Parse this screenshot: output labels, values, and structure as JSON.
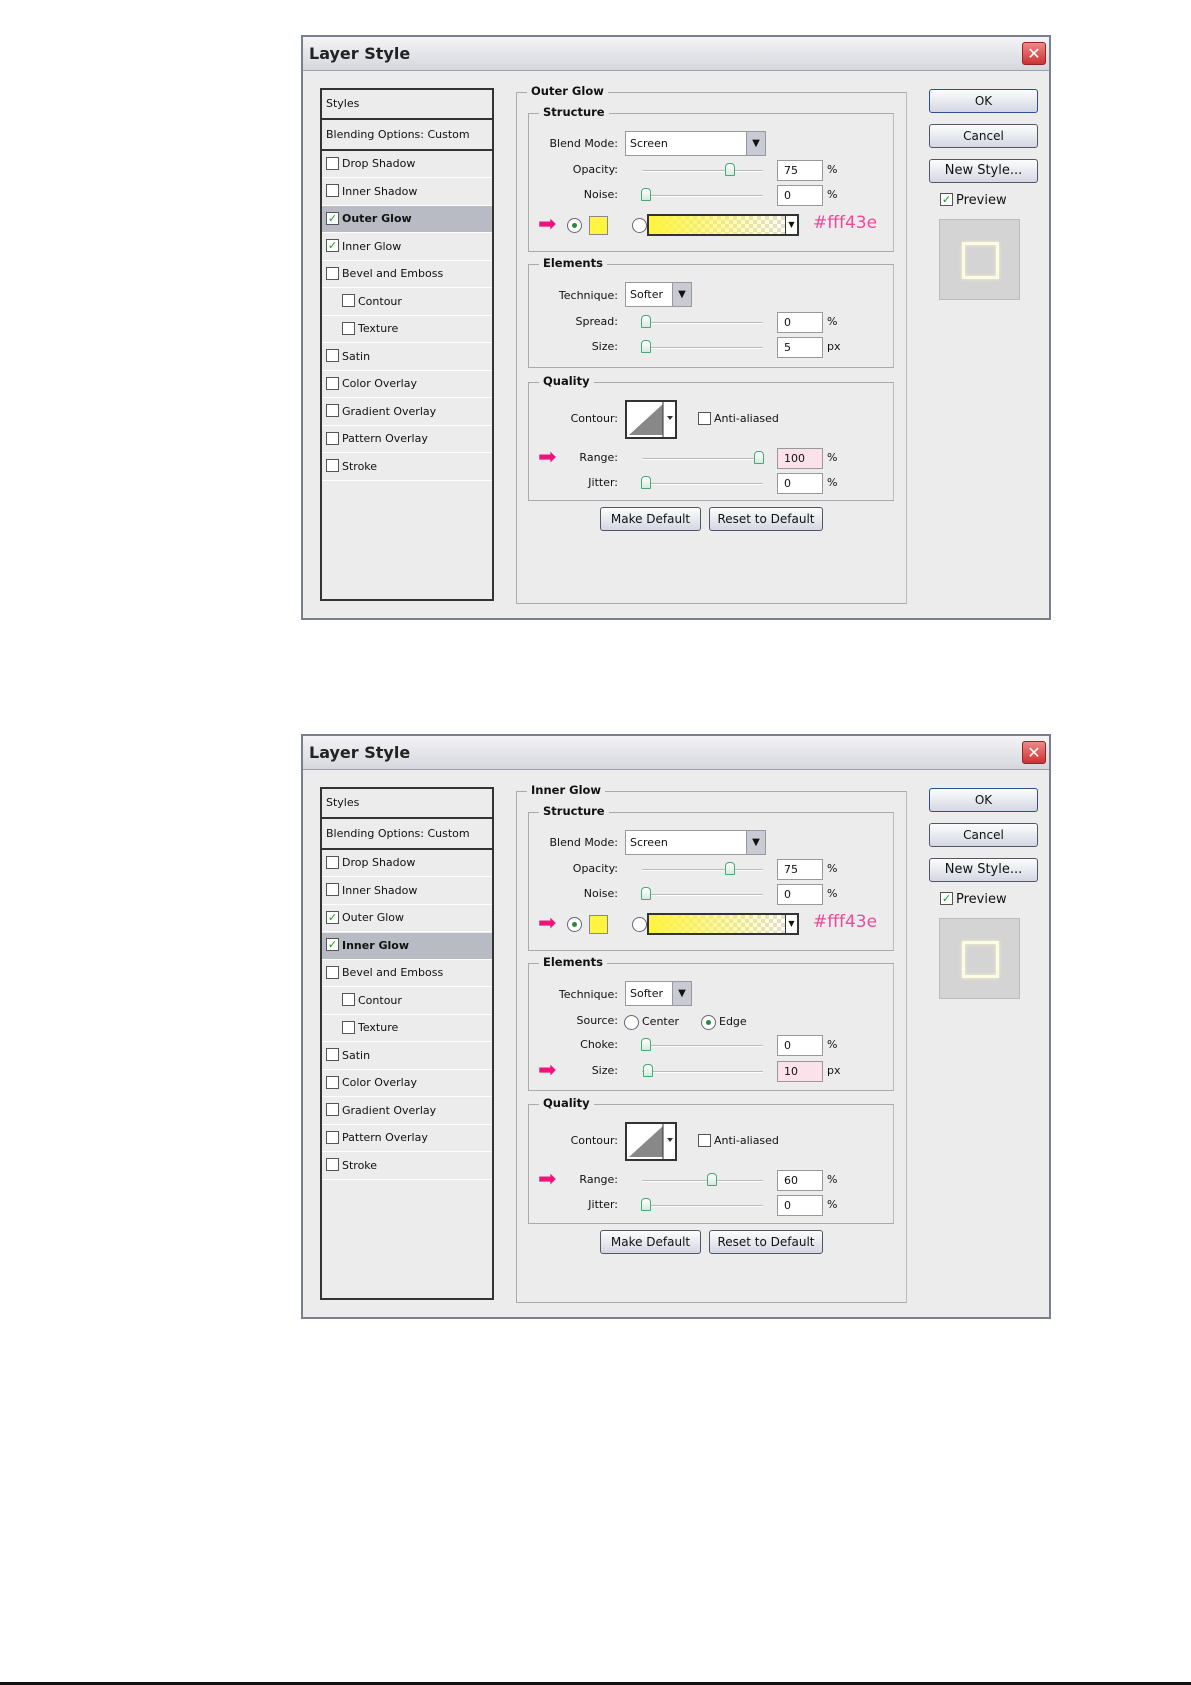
{
  "dialogs": [
    {
      "title": "Layer Style",
      "close_icon": "close-icon",
      "styles_header": "Styles",
      "blending": "Blending Options: Custom",
      "items": [
        {
          "label": "Drop Shadow",
          "checked": false,
          "selected": false,
          "indent": false
        },
        {
          "label": "Inner Shadow",
          "checked": false,
          "selected": false,
          "indent": false
        },
        {
          "label": "Outer Glow",
          "checked": true,
          "selected": true,
          "indent": false
        },
        {
          "label": "Inner Glow",
          "checked": true,
          "selected": false,
          "indent": false
        },
        {
          "label": "Bevel and Emboss",
          "checked": false,
          "selected": false,
          "indent": false
        },
        {
          "label": "Contour",
          "checked": false,
          "selected": false,
          "indent": true
        },
        {
          "label": "Texture",
          "checked": false,
          "selected": false,
          "indent": true
        },
        {
          "label": "Satin",
          "checked": false,
          "selected": false,
          "indent": false
        },
        {
          "label": "Color Overlay",
          "checked": false,
          "selected": false,
          "indent": false
        },
        {
          "label": "Gradient Overlay",
          "checked": false,
          "selected": false,
          "indent": false
        },
        {
          "label": "Pattern Overlay",
          "checked": false,
          "selected": false,
          "indent": false
        },
        {
          "label": "Stroke",
          "checked": false,
          "selected": false,
          "indent": false
        }
      ],
      "section_title": "Outer Glow",
      "structure": {
        "title": "Structure",
        "blend_label": "Blend Mode:",
        "blend_value": "Screen",
        "opacity": {
          "label": "Opacity:",
          "value": "75",
          "unit": "%",
          "slider_percent": 75
        },
        "noise": {
          "label": "Noise:",
          "value": "0",
          "unit": "%",
          "slider_percent": 0
        },
        "color_hex": "#fff43e",
        "color_radio_selected": "solid"
      },
      "elements": {
        "title": "Elements",
        "technique_label": "Technique:",
        "technique_value": "Softer",
        "rows": [
          {
            "label": "Spread:",
            "value": "0",
            "unit": "%",
            "slider_percent": 0,
            "highlight": false,
            "arrow": false
          },
          {
            "label": "Size:",
            "value": "5",
            "unit": "px",
            "slider_percent": 2,
            "highlight": false,
            "arrow": false
          }
        ]
      },
      "quality": {
        "title": "Quality",
        "contour_label": "Contour:",
        "anti_aliased_label": "Anti-aliased",
        "anti_aliased": false,
        "rows": [
          {
            "label": "Range:",
            "value": "100",
            "unit": "%",
            "slider_percent": 100,
            "highlight": true,
            "arrow": true
          },
          {
            "label": "Jitter:",
            "value": "0",
            "unit": "%",
            "slider_percent": 0,
            "highlight": false,
            "arrow": false
          }
        ]
      },
      "make_default": "Make Default",
      "reset_default": "Reset to Default",
      "ok": "OK",
      "cancel": "Cancel",
      "new_style": "New Style...",
      "preview_label": "Preview",
      "preview_checked": true
    },
    {
      "title": "Layer Style",
      "close_icon": "close-icon",
      "styles_header": "Styles",
      "blending": "Blending Options: Custom",
      "items": [
        {
          "label": "Drop Shadow",
          "checked": false,
          "selected": false,
          "indent": false
        },
        {
          "label": "Inner Shadow",
          "checked": false,
          "selected": false,
          "indent": false
        },
        {
          "label": "Outer Glow",
          "checked": true,
          "selected": false,
          "indent": false
        },
        {
          "label": "Inner Glow",
          "checked": true,
          "selected": true,
          "indent": false
        },
        {
          "label": "Bevel and Emboss",
          "checked": false,
          "selected": false,
          "indent": false
        },
        {
          "label": "Contour",
          "checked": false,
          "selected": false,
          "indent": true
        },
        {
          "label": "Texture",
          "checked": false,
          "selected": false,
          "indent": true
        },
        {
          "label": "Satin",
          "checked": false,
          "selected": false,
          "indent": false
        },
        {
          "label": "Color Overlay",
          "checked": false,
          "selected": false,
          "indent": false
        },
        {
          "label": "Gradient Overlay",
          "checked": false,
          "selected": false,
          "indent": false
        },
        {
          "label": "Pattern Overlay",
          "checked": false,
          "selected": false,
          "indent": false
        },
        {
          "label": "Stroke",
          "checked": false,
          "selected": false,
          "indent": false
        }
      ],
      "section_title": "Inner Glow",
      "structure": {
        "title": "Structure",
        "blend_label": "Blend Mode:",
        "blend_value": "Screen",
        "opacity": {
          "label": "Opacity:",
          "value": "75",
          "unit": "%",
          "slider_percent": 75
        },
        "noise": {
          "label": "Noise:",
          "value": "0",
          "unit": "%",
          "slider_percent": 0
        },
        "color_hex": "#fff43e",
        "color_radio_selected": "solid"
      },
      "elements": {
        "title": "Elements",
        "technique_label": "Technique:",
        "technique_value": "Softer",
        "source": {
          "label": "Source:",
          "center": "Center",
          "edge": "Edge",
          "selected": "edge"
        },
        "rows": [
          {
            "label": "Choke:",
            "value": "0",
            "unit": "%",
            "slider_percent": 0,
            "highlight": false,
            "arrow": false
          },
          {
            "label": "Size:",
            "value": "10",
            "unit": "px",
            "slider_percent": 5,
            "highlight": true,
            "arrow": true
          }
        ]
      },
      "quality": {
        "title": "Quality",
        "contour_label": "Contour:",
        "anti_aliased_label": "Anti-aliased",
        "anti_aliased": false,
        "rows": [
          {
            "label": "Range:",
            "value": "60",
            "unit": "%",
            "slider_percent": 60,
            "highlight": false,
            "arrow": true
          },
          {
            "label": "Jitter:",
            "value": "0",
            "unit": "%",
            "slider_percent": 0,
            "highlight": false,
            "arrow": false
          }
        ]
      },
      "make_default": "Make Default",
      "reset_default": "Reset to Default",
      "ok": "OK",
      "cancel": "Cancel",
      "new_style": "New Style...",
      "preview_label": "Preview",
      "preview_checked": true
    }
  ]
}
